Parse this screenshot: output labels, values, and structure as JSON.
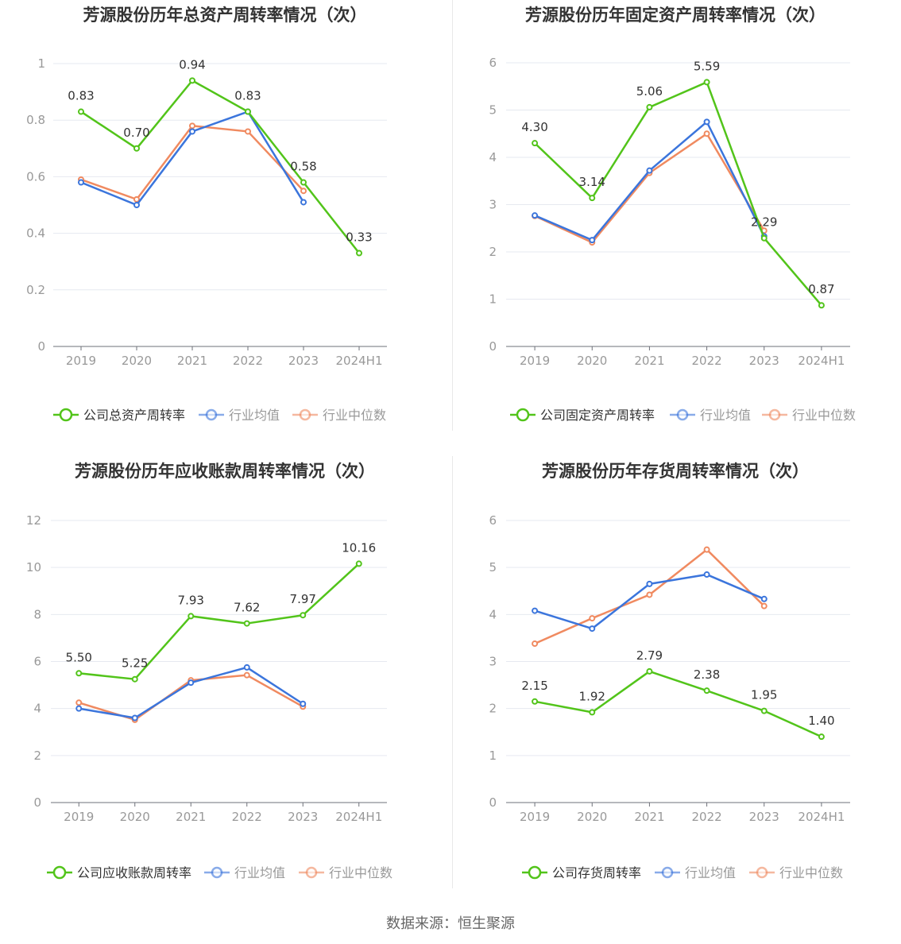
{
  "source_text": "数据来源：恒生聚源",
  "colors": {
    "company": "#52c41a",
    "avg": "#3b75dc",
    "median": "#f08a60",
    "grid": "#e6e9f0",
    "axis": "#999999"
  },
  "chart_data": [
    {
      "type": "line",
      "title": "芳源股份历年总资产周转率情况（次）",
      "categories": [
        "2019",
        "2020",
        "2021",
        "2022",
        "2023",
        "2024H1"
      ],
      "yticks": [
        "0",
        "0.2",
        "0.4",
        "0.6",
        "0.8",
        "1"
      ],
      "ylim": [
        0,
        1
      ],
      "series": [
        {
          "name": "公司总资产周转率",
          "values": [
            0.83,
            0.7,
            0.94,
            0.83,
            0.58,
            0.33
          ],
          "labels": [
            "0.83",
            "0.70",
            "0.94",
            "0.83",
            "0.58",
            "0.33"
          ]
        },
        {
          "name": "行业均值",
          "values": [
            0.58,
            0.5,
            0.76,
            0.83,
            0.51,
            null
          ]
        },
        {
          "name": "行业中位数",
          "values": [
            0.59,
            0.52,
            0.78,
            0.76,
            0.55,
            null
          ]
        }
      ],
      "legend": "bottom"
    },
    {
      "type": "line",
      "title": "芳源股份历年固定资产周转率情况（次）",
      "categories": [
        "2019",
        "2020",
        "2021",
        "2022",
        "2023",
        "2024H1"
      ],
      "yticks": [
        "0",
        "1",
        "2",
        "3",
        "4",
        "5",
        "6"
      ],
      "ylim": [
        0,
        6
      ],
      "series": [
        {
          "name": "公司固定资产周转率",
          "values": [
            4.3,
            3.14,
            5.06,
            5.59,
            2.29,
            0.87
          ],
          "labels": [
            "4.30",
            "3.14",
            "5.06",
            "5.59",
            "2.29",
            "0.87"
          ]
        },
        {
          "name": "行业均值",
          "values": [
            2.77,
            2.25,
            3.72,
            4.75,
            2.33,
            null
          ]
        },
        {
          "name": "行业中位数",
          "values": [
            2.76,
            2.2,
            3.67,
            4.5,
            2.45,
            null
          ]
        }
      ],
      "legend": "bottom"
    },
    {
      "type": "line",
      "title": "芳源股份历年应收账款周转率情况（次）",
      "categories": [
        "2019",
        "2020",
        "2021",
        "2022",
        "2023",
        "2024H1"
      ],
      "yticks": [
        "0",
        "2",
        "4",
        "6",
        "8",
        "10",
        "12"
      ],
      "ylim": [
        0,
        12
      ],
      "series": [
        {
          "name": "公司应收账款周转率",
          "values": [
            5.5,
            5.25,
            7.93,
            7.62,
            7.97,
            10.16
          ],
          "labels": [
            "5.50",
            "5.25",
            "7.93",
            "7.62",
            "7.97",
            "10.16"
          ]
        },
        {
          "name": "行业均值",
          "values": [
            4.0,
            3.6,
            5.1,
            5.75,
            4.2,
            null
          ]
        },
        {
          "name": "行业中位数",
          "values": [
            4.25,
            3.52,
            5.2,
            5.42,
            4.08,
            null
          ]
        }
      ],
      "legend": "bottom"
    },
    {
      "type": "line",
      "title": "芳源股份历年存货周转率情况（次）",
      "categories": [
        "2019",
        "2020",
        "2021",
        "2022",
        "2023",
        "2024H1"
      ],
      "yticks": [
        "0",
        "1",
        "2",
        "3",
        "4",
        "5",
        "6"
      ],
      "ylim": [
        0,
        6
      ],
      "series": [
        {
          "name": "公司存货周转率",
          "values": [
            2.15,
            1.92,
            2.79,
            2.38,
            1.95,
            1.4
          ],
          "labels": [
            "2.15",
            "1.92",
            "2.79",
            "2.38",
            "1.95",
            "1.40"
          ]
        },
        {
          "name": "行业均值",
          "values": [
            4.08,
            3.7,
            4.65,
            4.85,
            4.33,
            null
          ]
        },
        {
          "name": "行业中位数",
          "values": [
            3.38,
            3.92,
            4.42,
            5.38,
            4.18,
            null
          ]
        }
      ],
      "legend": "bottom"
    }
  ]
}
